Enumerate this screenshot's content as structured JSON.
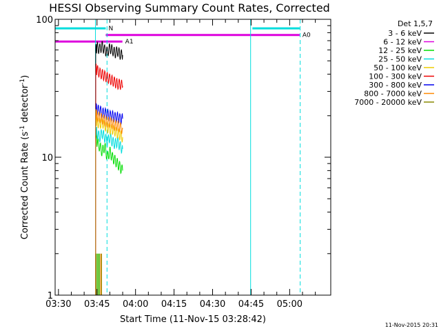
{
  "chart_data": {
    "type": "line",
    "title": "HESSI Observing Summary Count Rates, Corrected",
    "xlabel": "Start Time (11-Nov-15 03:28:42)",
    "ylabel": "Corrected Count Rate (s",
    "ylabel_sup1": "-1",
    "ylabel_mid": " detector",
    "ylabel_sup2": "-1",
    "ylabel_end": ")",
    "y_scale": "log",
    "ylim": [
      1,
      100
    ],
    "y_ticks": [
      1,
      10,
      100
    ],
    "y_tick_labels": [
      "1",
      "10",
      "100"
    ],
    "xlim_minutes": [
      208.7,
      316
    ],
    "x_ticks_minutes": [
      210,
      225,
      240,
      255,
      270,
      285,
      300
    ],
    "x_tick_labels": [
      "03:30",
      "03:45",
      "04:00",
      "04:15",
      "04:30",
      "04:45",
      "05:00"
    ],
    "footer": "11-Nov-2015 20:31",
    "legend": {
      "title": "Det 1,5,7",
      "placement": "right",
      "entries": [
        {
          "label": "3 - 6 keV",
          "color": "#000000"
        },
        {
          "label": "6 - 12 keV",
          "color": "#dd00dd"
        },
        {
          "label": "12 - 25 keV",
          "color": "#00dd00"
        },
        {
          "label": "25 - 50 keV",
          "color": "#00dddd"
        },
        {
          "label": "50 - 100 keV",
          "color": "#eecc00"
        },
        {
          "label": "100 - 300 keV",
          "color": "#ee0000"
        },
        {
          "label": "300 - 800 keV",
          "color": "#0000ee"
        },
        {
          "label": "800 - 7000 keV",
          "color": "#ff8800"
        },
        {
          "label": "7000 - 20000 keV",
          "color": "#888800"
        }
      ]
    },
    "flags": [
      {
        "label": "N",
        "color": "#00dddd",
        "y": 86,
        "segments": [
          [
            208.7,
            228.4
          ],
          [
            285.5,
            303.9
          ]
        ]
      },
      {
        "label": "A0",
        "color": "#dd00dd",
        "y": 77,
        "segments": [
          [
            228.4,
            303.9
          ]
        ]
      },
      {
        "label": "A1",
        "color": "#dd00dd",
        "y": 69,
        "segments": [
          [
            208.7,
            234.9
          ]
        ]
      }
    ],
    "vertical_markers": [
      {
        "x": 224.4,
        "style": "solid",
        "color": "#00dddd"
      },
      {
        "x": 228.9,
        "style": "dashed",
        "color": "#00dddd"
      },
      {
        "x": 284.8,
        "style": "solid",
        "color": "#00dddd"
      },
      {
        "x": 304.1,
        "style": "dashed",
        "color": "#00dddd"
      }
    ],
    "series": [
      {
        "name": "3 - 6 keV",
        "color": "#000000",
        "x": [
          224.5,
          225,
          226,
          227,
          228,
          229,
          230,
          231,
          232,
          233,
          234,
          235
        ],
        "y": [
          60,
          63,
          61,
          64,
          60,
          58,
          62,
          60,
          57,
          59,
          56,
          55
        ]
      },
      {
        "name": "12 - 25 keV",
        "color": "#00dd00",
        "x": [
          224.5,
          225,
          226,
          227,
          228,
          229,
          230,
          231,
          232,
          233,
          234,
          235
        ],
        "y": [
          15,
          13,
          12,
          11,
          12,
          10,
          11,
          10,
          9.5,
          9,
          8.5,
          8
        ]
      },
      {
        "name": "25 - 50 keV",
        "color": "#00dddd",
        "x": [
          224.5,
          225,
          226,
          227,
          228,
          229,
          230,
          231,
          232,
          233,
          234,
          235
        ],
        "y": [
          16,
          15,
          14,
          15,
          14,
          13,
          14,
          13,
          12.5,
          13,
          12,
          11.5
        ]
      },
      {
        "name": "50 - 100 keV",
        "color": "#eecc00",
        "x": [
          224.5,
          225,
          226,
          227,
          228,
          229,
          230,
          231,
          232,
          233,
          234,
          235
        ],
        "y": [
          19,
          18,
          17.5,
          18,
          17,
          16.5,
          16,
          16,
          15.5,
          15,
          14.5,
          14
        ]
      },
      {
        "name": "100 - 300 keV",
        "color": "#ee0000",
        "x": [
          224.5,
          225,
          226,
          227,
          228,
          229,
          230,
          231,
          232,
          233,
          234,
          235
        ],
        "y": [
          44,
          43,
          41,
          40,
          39,
          38,
          37,
          36,
          35,
          34,
          34,
          33
        ]
      },
      {
        "name": "300 - 800 keV",
        "color": "#0000ee",
        "x": [
          224.5,
          225,
          226,
          227,
          228,
          229,
          230,
          231,
          232,
          233,
          234,
          235
        ],
        "y": [
          23,
          22,
          22,
          21,
          21,
          20.5,
          20,
          20,
          19.5,
          19.5,
          19,
          19
        ]
      },
      {
        "name": "800 - 7000 keV",
        "color": "#ff8800",
        "x": [
          224.5,
          225,
          226,
          227,
          228,
          229,
          230,
          231,
          232,
          233,
          234,
          235
        ],
        "y": [
          21,
          20,
          19.5,
          19,
          18.5,
          18,
          18,
          17.5,
          17,
          17,
          16.5,
          16
        ]
      }
    ],
    "low_spikes": [
      {
        "color": "#888800",
        "x": [
          224.7,
          225.4,
          226.1,
          226.8
        ]
      },
      {
        "color": "#00dd00",
        "x": [
          225.1,
          225.8
        ]
      },
      {
        "color": "#ff8800",
        "x": [
          226.5
        ]
      }
    ]
  }
}
